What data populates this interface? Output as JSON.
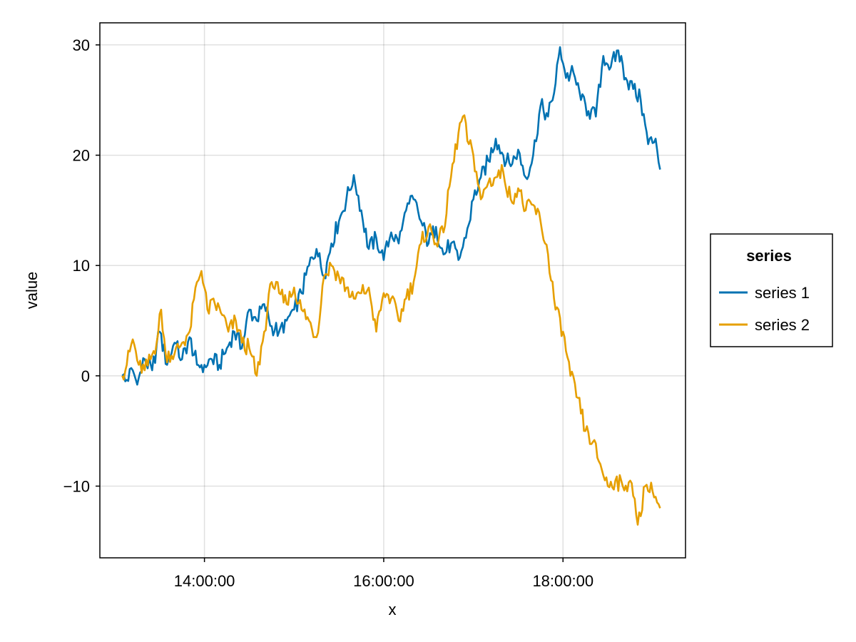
{
  "chart_data": {
    "type": "line",
    "title": "",
    "xlabel": "x",
    "ylabel": "value",
    "x_axis_kind": "time",
    "x_start": "13:05:00",
    "x_end": "19:05:00",
    "x_step": "1 minute",
    "xlim": [
      "12:50:00",
      "19:22:00"
    ],
    "ylim": [
      -16.5,
      32
    ],
    "x_ticks": [
      {
        "value": "14:00:00",
        "label": "14:00:00"
      },
      {
        "value": "16:00:00",
        "label": "16:00:00"
      },
      {
        "value": "18:00:00",
        "label": "18:00:00"
      }
    ],
    "y_ticks": [
      {
        "value": -10,
        "label": "−10"
      },
      {
        "value": 0,
        "label": "0"
      },
      {
        "value": 10,
        "label": "10"
      },
      {
        "value": 20,
        "label": "20"
      },
      {
        "value": 30,
        "label": "30"
      }
    ],
    "grid": true,
    "legend": {
      "title": "series",
      "position": "right"
    },
    "series": [
      {
        "name": "series 1",
        "color": "#0072b2",
        "anchors": [
          [
            "13:05:00",
            0
          ],
          [
            "13:07:00",
            -0.5
          ],
          [
            "13:12:00",
            0.5
          ],
          [
            "13:15:00",
            -0.8
          ],
          [
            "13:20:00",
            1.5
          ],
          [
            "13:25:00",
            0.5
          ],
          [
            "13:30:00",
            4
          ],
          [
            "13:35:00",
            1
          ],
          [
            "13:40:00",
            3
          ],
          [
            "13:45:00",
            1.5
          ],
          [
            "13:50:00",
            3.5
          ],
          [
            "13:55:00",
            1
          ],
          [
            "14:00:00",
            1
          ],
          [
            "14:05:00",
            1.5
          ],
          [
            "14:10:00",
            1
          ],
          [
            "14:15:00",
            2.5
          ],
          [
            "14:20:00",
            4
          ],
          [
            "14:25:00",
            2.5
          ],
          [
            "14:30:00",
            6
          ],
          [
            "14:35:00",
            5
          ],
          [
            "14:40:00",
            6.5
          ],
          [
            "14:45:00",
            4.5
          ],
          [
            "14:50:00",
            4
          ],
          [
            "14:55:00",
            5
          ],
          [
            "15:00:00",
            6
          ],
          [
            "15:05:00",
            7.5
          ],
          [
            "15:10:00",
            10
          ],
          [
            "15:15:00",
            11.5
          ],
          [
            "15:20:00",
            9
          ],
          [
            "15:25:00",
            12
          ],
          [
            "15:30:00",
            14
          ],
          [
            "15:35:00",
            16
          ],
          [
            "15:40:00",
            18.2
          ],
          [
            "15:45:00",
            15
          ],
          [
            "15:50:00",
            11.5
          ],
          [
            "15:55:00",
            12.5
          ],
          [
            "16:00:00",
            10.5
          ],
          [
            "16:05:00",
            13
          ],
          [
            "16:10:00",
            12
          ],
          [
            "16:15:00",
            15
          ],
          [
            "16:20:00",
            16
          ],
          [
            "16:25:00",
            14
          ],
          [
            "16:30:00",
            12
          ],
          [
            "16:35:00",
            13.5
          ],
          [
            "16:40:00",
            11
          ],
          [
            "16:45:00",
            12
          ],
          [
            "16:50:00",
            10.5
          ],
          [
            "16:55:00",
            12.5
          ],
          [
            "17:00:00",
            16
          ],
          [
            "17:05:00",
            18
          ],
          [
            "17:10:00",
            19.5
          ],
          [
            "17:15:00",
            21.5
          ],
          [
            "17:20:00",
            20
          ],
          [
            "17:25:00",
            19
          ],
          [
            "17:30:00",
            20.5
          ],
          [
            "17:35:00",
            18
          ],
          [
            "17:40:00",
            20
          ],
          [
            "17:45:00",
            24.5
          ],
          [
            "17:50:00",
            23.5
          ],
          [
            "17:55:00",
            26.5
          ],
          [
            "17:58:00",
            29.8
          ],
          [
            "18:02:00",
            27
          ],
          [
            "18:07:00",
            27.5
          ],
          [
            "18:12:00",
            25
          ],
          [
            "18:17:00",
            24
          ],
          [
            "18:22:00",
            23.5
          ],
          [
            "18:27:00",
            29
          ],
          [
            "18:32:00",
            28
          ],
          [
            "18:37:00",
            29.5
          ],
          [
            "18:42:00",
            27
          ],
          [
            "18:47:00",
            26
          ],
          [
            "18:52:00",
            25
          ],
          [
            "18:57:00",
            21
          ],
          [
            "19:02:00",
            21.5
          ],
          [
            "19:05:00",
            18.7
          ]
        ]
      },
      {
        "name": "series 2",
        "color": "#e69f00",
        "anchors": [
          [
            "13:05:00",
            0
          ],
          [
            "13:08:00",
            1
          ],
          [
            "13:12:00",
            3.3
          ],
          [
            "13:16:00",
            1
          ],
          [
            "13:20:00",
            0.5
          ],
          [
            "13:24:00",
            1.5
          ],
          [
            "13:28:00",
            3
          ],
          [
            "13:31:00",
            6
          ],
          [
            "13:34:00",
            2
          ],
          [
            "13:40:00",
            2
          ],
          [
            "13:45:00",
            3
          ],
          [
            "13:50:00",
            4
          ],
          [
            "13:55:00",
            8.5
          ],
          [
            "13:58:00",
            9.5
          ],
          [
            "14:02:00",
            6
          ],
          [
            "14:07:00",
            6.5
          ],
          [
            "14:12:00",
            5.5
          ],
          [
            "14:16:00",
            4
          ],
          [
            "14:21:00",
            5
          ],
          [
            "14:25:00",
            3
          ],
          [
            "14:30:00",
            2.5
          ],
          [
            "14:35:00",
            0
          ],
          [
            "14:40:00",
            4
          ],
          [
            "14:45:00",
            8.5
          ],
          [
            "14:50:00",
            7.5
          ],
          [
            "14:55:00",
            6.5
          ],
          [
            "15:00:00",
            8
          ],
          [
            "15:05:00",
            6
          ],
          [
            "15:10:00",
            5
          ],
          [
            "15:15:00",
            3.5
          ],
          [
            "15:20:00",
            9
          ],
          [
            "15:25:00",
            10
          ],
          [
            "15:30:00",
            9
          ],
          [
            "15:35:00",
            8
          ],
          [
            "15:40:00",
            7
          ],
          [
            "15:45:00",
            7.5
          ],
          [
            "15:50:00",
            8
          ],
          [
            "15:55:00",
            4
          ],
          [
            "16:00:00",
            7.5
          ],
          [
            "16:05:00",
            7
          ],
          [
            "16:10:00",
            5
          ],
          [
            "16:15:00",
            7
          ],
          [
            "16:20:00",
            8.5
          ],
          [
            "16:25:00",
            12
          ],
          [
            "16:30:00",
            13.5
          ],
          [
            "16:35:00",
            12
          ],
          [
            "16:40:00",
            13
          ],
          [
            "16:45:00",
            18
          ],
          [
            "16:50:00",
            22
          ],
          [
            "16:53:00",
            23.5
          ],
          [
            "16:57:00",
            21
          ],
          [
            "17:00:00",
            20
          ],
          [
            "17:05:00",
            16
          ],
          [
            "17:10:00",
            17.5
          ],
          [
            "17:15:00",
            18
          ],
          [
            "17:20:00",
            18.5
          ],
          [
            "17:25:00",
            16
          ],
          [
            "17:30:00",
            17
          ],
          [
            "17:35:00",
            15
          ],
          [
            "17:40:00",
            15.5
          ],
          [
            "17:45:00",
            14
          ],
          [
            "17:50:00",
            11
          ],
          [
            "17:55:00",
            6
          ],
          [
            "18:00:00",
            4
          ],
          [
            "18:05:00",
            0
          ],
          [
            "18:10:00",
            -2
          ],
          [
            "18:15:00",
            -5
          ],
          [
            "18:20:00",
            -6
          ],
          [
            "18:25:00",
            -8
          ],
          [
            "18:30:00",
            -10
          ],
          [
            "18:35:00",
            -9.5
          ],
          [
            "18:40:00",
            -10
          ],
          [
            "18:45:00",
            -9.5
          ],
          [
            "18:50:00",
            -13.5
          ],
          [
            "18:55:00",
            -10
          ],
          [
            "19:00:00",
            -10.5
          ],
          [
            "19:05:00",
            -12
          ]
        ]
      }
    ]
  }
}
